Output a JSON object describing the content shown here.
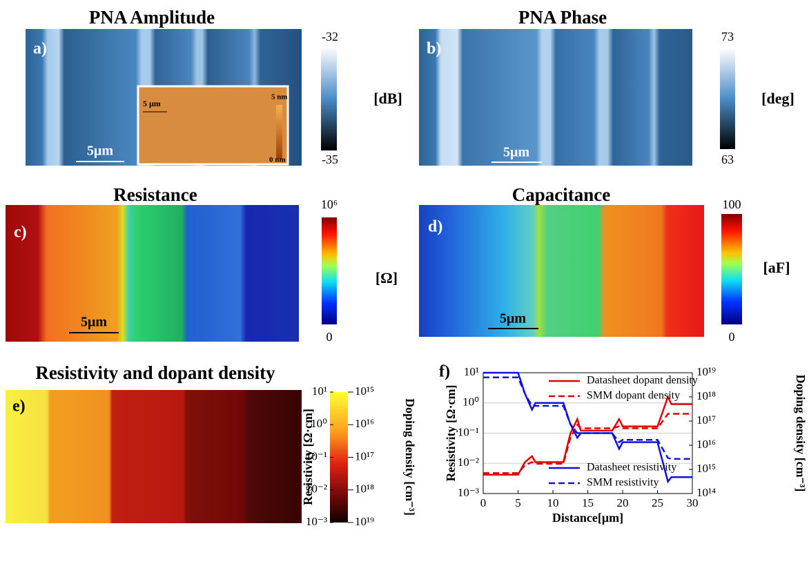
{
  "panels": [
    {
      "label": "a)",
      "title": "PNA Amplitude",
      "scale_bar": "5μm",
      "colorbar": {
        "max": -32,
        "min": -35,
        "unit": "[dB]"
      },
      "inset": {
        "scale_bar": "5 μm",
        "max": "5 nm",
        "min": "0 nm"
      }
    },
    {
      "label": "b)",
      "title": "PNA Phase",
      "scale_bar": "5μm",
      "colorbar": {
        "max": 73,
        "min": 63,
        "unit": "[deg]"
      }
    },
    {
      "label": "c)",
      "title": "Resistance",
      "scale_bar": "5μm",
      "colorbar": {
        "max": "10⁶",
        "min": 0,
        "unit": "[Ω]"
      }
    },
    {
      "label": "d)",
      "title": "Capacitance",
      "scale_bar": "5μm",
      "colorbar": {
        "max": 100,
        "min": 0,
        "unit": "[aF]"
      }
    },
    {
      "label": "e)",
      "title": "Resistivity and dopant density",
      "colorbar": {
        "label": "Resistivity [Ω·cm]",
        "label2": "Doping density [cm⁻³]",
        "lim": [
          0.001,
          10
        ],
        "lim2": [
          1e+19,
          1000000000000000.0
        ],
        "ticks": [
          {
            "value": 10,
            "label": "10¹"
          },
          {
            "value": 1,
            "label": "10⁰"
          },
          {
            "value": 0.1,
            "label": "10⁻¹"
          },
          {
            "value": 0.01,
            "label": "10⁻²"
          },
          {
            "value": 0.001,
            "label": "10⁻³"
          }
        ],
        "ticks2": [
          {
            "value": 1000000000000000.0,
            "label": "10¹⁵"
          },
          {
            "value": 1e+16,
            "label": "10¹⁶"
          },
          {
            "value": 1e+17,
            "label": "10¹⁷"
          },
          {
            "value": 1e+18,
            "label": "10¹⁸"
          },
          {
            "value": 1e+19,
            "label": "10¹⁹"
          }
        ]
      }
    }
  ],
  "chart_data": {
    "type": "line",
    "label": "f)",
    "xlabel": "Distance[μm]",
    "ylabel": "Resistivity [Ω·cm]",
    "y2label": "Doping density [cm⁻³]",
    "x": [
      0,
      5,
      6,
      7,
      7.5,
      11.5,
      12.5,
      13.5,
      14,
      18.5,
      19.5,
      20,
      25,
      26.5,
      27,
      30
    ],
    "xlim": [
      0,
      30
    ],
    "xticks": [
      0,
      5,
      10,
      15,
      20,
      25,
      30
    ],
    "ylog": true,
    "ylim": [
      0.001,
      10
    ],
    "yticks": [
      {
        "value": 0.001,
        "label": "10⁻³"
      },
      {
        "value": 0.01,
        "label": "10⁻²"
      },
      {
        "value": 0.1,
        "label": "10⁻¹"
      },
      {
        "value": 1,
        "label": "10⁰"
      },
      {
        "value": 10,
        "label": "10¹"
      }
    ],
    "y2lim": [
      100000000000000.0,
      1e+19
    ],
    "y2ticks": [
      {
        "value": 100000000000000.0,
        "label": "10¹⁴"
      },
      {
        "value": 1000000000000000.0,
        "label": "10¹⁵"
      },
      {
        "value": 1e+16,
        "label": "10¹⁶"
      },
      {
        "value": 1e+17,
        "label": "10¹⁷"
      },
      {
        "value": 1e+18,
        "label": "10¹⁸"
      },
      {
        "value": 1e+19,
        "label": "10¹⁹"
      }
    ],
    "grid": true,
    "series": [
      {
        "name": "Datasheet dopant density",
        "color": "#e00000",
        "linestyle": "solid",
        "axis": "y2",
        "values": [
          600000000000000.0,
          600000000000000.0,
          2000000000000000.0,
          3500000000000000.0,
          2000000000000000.0,
          2000000000000000.0,
          3e+16,
          1.2e+17,
          4e+16,
          4e+16,
          1.2e+17,
          6e+16,
          6e+16,
          1e+18,
          5e+17,
          5e+17
        ]
      },
      {
        "name": "SMM dopant density",
        "color": "#e00000",
        "linestyle": "dashed",
        "axis": "y2",
        "values": [
          700000000000000.0,
          700000000000000.0,
          1500000000000000.0,
          2000000000000000.0,
          1700000000000000.0,
          1700000000000000.0,
          2e+16,
          7e+16,
          5e+16,
          5e+16,
          6e+16,
          5e+16,
          5e+16,
          2e+17,
          2e+17,
          2e+17
        ]
      },
      {
        "name": "Datasheet resistivity",
        "color": "#1010e0",
        "linestyle": "solid",
        "values": [
          10,
          10,
          2,
          0.6,
          1,
          1,
          0.2,
          0.07,
          0.1,
          0.1,
          0.03,
          0.05,
          0.05,
          0.0025,
          0.0035,
          0.0035
        ]
      },
      {
        "name": "SMM resistivity",
        "color": "#1010e0",
        "linestyle": "dashed",
        "values": [
          7,
          7,
          2,
          0.8,
          0.8,
          0.8,
          0.2,
          0.1,
          0.1,
          0.1,
          0.05,
          0.06,
          0.06,
          0.015,
          0.014,
          0.014
        ]
      }
    ]
  }
}
